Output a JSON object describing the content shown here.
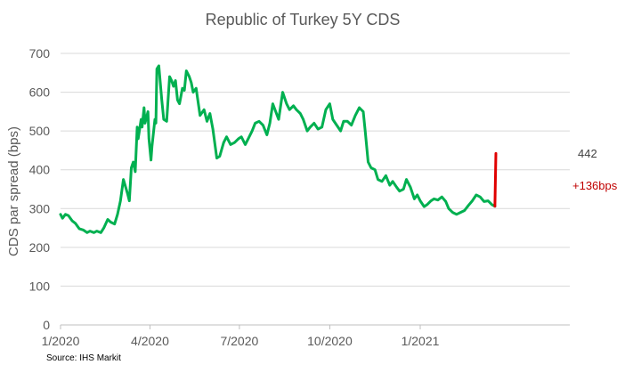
{
  "chart_data": {
    "type": "line",
    "title": "Republic of Turkey 5Y CDS",
    "ylabel": "CDS par spread (bps)",
    "xlabel": "",
    "source": "Source: IHS Markit",
    "ylim": [
      0,
      700
    ],
    "yticks": [
      0,
      100,
      200,
      300,
      400,
      500,
      600,
      700
    ],
    "xlim": [
      "2020-01-01",
      "2021-04-05"
    ],
    "xticks": [
      {
        "date": "2020-01-01",
        "label": "1/2020"
      },
      {
        "date": "2020-04-01",
        "label": "4/2020"
      },
      {
        "date": "2020-07-01",
        "label": "7/2020"
      },
      {
        "date": "2020-10-01",
        "label": "10/2020"
      },
      {
        "date": "2021-01-01",
        "label": "1/2021"
      }
    ],
    "grid": "horizontal",
    "colors": {
      "series": "#00b050",
      "jump": "#e00000",
      "grid": "#d9d9d9",
      "axis": "#bfbfbf"
    },
    "series": [
      {
        "color": "#00b050",
        "points": [
          [
            "2020-01-01",
            285
          ],
          [
            "2020-01-03",
            275
          ],
          [
            "2020-01-06",
            285
          ],
          [
            "2020-01-09",
            282
          ],
          [
            "2020-01-13",
            268
          ],
          [
            "2020-01-16",
            262
          ],
          [
            "2020-01-20",
            248
          ],
          [
            "2020-01-24",
            245
          ],
          [
            "2020-01-28",
            238
          ],
          [
            "2020-01-31",
            242
          ],
          [
            "2020-02-04",
            238
          ],
          [
            "2020-02-07",
            242
          ],
          [
            "2020-02-11",
            238
          ],
          [
            "2020-02-14",
            250
          ],
          [
            "2020-02-18",
            272
          ],
          [
            "2020-02-21",
            265
          ],
          [
            "2020-02-25",
            260
          ],
          [
            "2020-02-28",
            285
          ],
          [
            "2020-03-02",
            320
          ],
          [
            "2020-03-05",
            375
          ],
          [
            "2020-03-09",
            340
          ],
          [
            "2020-03-11",
            320
          ],
          [
            "2020-03-13",
            405
          ],
          [
            "2020-03-15",
            420
          ],
          [
            "2020-03-17",
            395
          ],
          [
            "2020-03-19",
            510
          ],
          [
            "2020-03-20",
            480
          ],
          [
            "2020-03-23",
            530
          ],
          [
            "2020-03-24",
            510
          ],
          [
            "2020-03-26",
            560
          ],
          [
            "2020-03-27",
            520
          ],
          [
            "2020-03-30",
            550
          ],
          [
            "2020-03-31",
            480
          ],
          [
            "2020-04-02",
            425
          ],
          [
            "2020-04-03",
            460
          ],
          [
            "2020-04-06",
            530
          ],
          [
            "2020-04-07",
            520
          ],
          [
            "2020-04-08",
            660
          ],
          [
            "2020-04-10",
            668
          ],
          [
            "2020-04-13",
            580
          ],
          [
            "2020-04-15",
            530
          ],
          [
            "2020-04-18",
            525
          ],
          [
            "2020-04-21",
            640
          ],
          [
            "2020-04-23",
            630
          ],
          [
            "2020-04-25",
            615
          ],
          [
            "2020-04-27",
            630
          ],
          [
            "2020-04-29",
            580
          ],
          [
            "2020-05-01",
            570
          ],
          [
            "2020-05-04",
            610
          ],
          [
            "2020-05-06",
            605
          ],
          [
            "2020-05-08",
            655
          ],
          [
            "2020-05-11",
            640
          ],
          [
            "2020-05-13",
            625
          ],
          [
            "2020-05-15",
            600
          ],
          [
            "2020-05-18",
            610
          ],
          [
            "2020-05-20",
            575
          ],
          [
            "2020-05-22",
            540
          ],
          [
            "2020-05-26",
            555
          ],
          [
            "2020-05-29",
            525
          ],
          [
            "2020-06-01",
            545
          ],
          [
            "2020-06-04",
            505
          ],
          [
            "2020-06-08",
            430
          ],
          [
            "2020-06-11",
            435
          ],
          [
            "2020-06-15",
            470
          ],
          [
            "2020-06-18",
            485
          ],
          [
            "2020-06-22",
            465
          ],
          [
            "2020-06-26",
            470
          ],
          [
            "2020-06-30",
            480
          ],
          [
            "2020-07-03",
            485
          ],
          [
            "2020-07-07",
            465
          ],
          [
            "2020-07-10",
            480
          ],
          [
            "2020-07-14",
            500
          ],
          [
            "2020-07-17",
            520
          ],
          [
            "2020-07-21",
            525
          ],
          [
            "2020-07-25",
            515
          ],
          [
            "2020-07-29",
            490
          ],
          [
            "2020-08-01",
            520
          ],
          [
            "2020-08-04",
            570
          ],
          [
            "2020-08-07",
            550
          ],
          [
            "2020-08-10",
            530
          ],
          [
            "2020-08-14",
            600
          ],
          [
            "2020-08-18",
            570
          ],
          [
            "2020-08-21",
            555
          ],
          [
            "2020-08-25",
            565
          ],
          [
            "2020-08-28",
            555
          ],
          [
            "2020-09-01",
            545
          ],
          [
            "2020-09-04",
            530
          ],
          [
            "2020-09-08",
            500
          ],
          [
            "2020-09-11",
            510
          ],
          [
            "2020-09-15",
            520
          ],
          [
            "2020-09-19",
            505
          ],
          [
            "2020-09-23",
            510
          ],
          [
            "2020-09-27",
            555
          ],
          [
            "2020-10-01",
            570
          ],
          [
            "2020-10-04",
            530
          ],
          [
            "2020-10-08",
            515
          ],
          [
            "2020-10-12",
            500
          ],
          [
            "2020-10-15",
            525
          ],
          [
            "2020-10-19",
            525
          ],
          [
            "2020-10-23",
            515
          ],
          [
            "2020-10-27",
            540
          ],
          [
            "2020-10-31",
            560
          ],
          [
            "2020-11-04",
            550
          ],
          [
            "2020-11-06",
            500
          ],
          [
            "2020-11-09",
            420
          ],
          [
            "2020-11-12",
            405
          ],
          [
            "2020-11-16",
            400
          ],
          [
            "2020-11-19",
            375
          ],
          [
            "2020-11-23",
            370
          ],
          [
            "2020-11-27",
            385
          ],
          [
            "2020-12-01",
            360
          ],
          [
            "2020-12-04",
            370
          ],
          [
            "2020-12-08",
            355
          ],
          [
            "2020-12-11",
            345
          ],
          [
            "2020-12-15",
            350
          ],
          [
            "2020-12-18",
            375
          ],
          [
            "2020-12-22",
            355
          ],
          [
            "2020-12-26",
            325
          ],
          [
            "2020-12-29",
            335
          ],
          [
            "2021-01-01",
            320
          ],
          [
            "2021-01-05",
            305
          ],
          [
            "2021-01-08",
            310
          ],
          [
            "2021-01-12",
            320
          ],
          [
            "2021-01-15",
            325
          ],
          [
            "2021-01-19",
            322
          ],
          [
            "2021-01-23",
            330
          ],
          [
            "2021-01-27",
            318
          ],
          [
            "2021-01-30",
            300
          ],
          [
            "2021-02-03",
            290
          ],
          [
            "2021-02-07",
            285
          ],
          [
            "2021-02-11",
            290
          ],
          [
            "2021-02-15",
            295
          ],
          [
            "2021-02-19",
            308
          ],
          [
            "2021-02-23",
            320
          ],
          [
            "2021-02-27",
            335
          ],
          [
            "2021-03-03",
            330
          ],
          [
            "2021-03-07",
            318
          ],
          [
            "2021-03-11",
            320
          ],
          [
            "2021-03-15",
            310
          ],
          [
            "2021-03-18",
            306
          ]
        ]
      }
    ],
    "jump": {
      "from": [
        "2021-03-18",
        306
      ],
      "to": [
        "2021-03-19",
        442
      ]
    },
    "annotations": {
      "last_value": "442",
      "change": "+136bps"
    }
  }
}
